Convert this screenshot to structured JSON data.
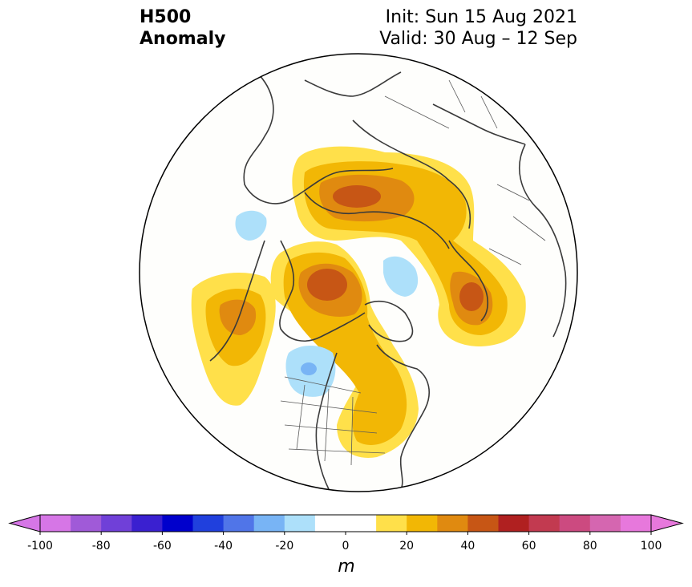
{
  "header": {
    "title_line1": "H500",
    "title_line2": "Anomaly",
    "init": "Init: Sun 15 Aug 2021",
    "valid": "Valid: 30 Aug – 12 Sep"
  },
  "map": {
    "projection": "north-polar-stereographic",
    "region": "Northern Hemisphere (North America centered)",
    "anomaly_centers": [
      {
        "name": "northern-russia-high",
        "peak": "40-50",
        "sign": "positive"
      },
      {
        "name": "alaska-high",
        "peak": "40-50",
        "sign": "positive"
      },
      {
        "name": "north-pacific-high",
        "peak": "30-40",
        "sign": "positive"
      },
      {
        "name": "scandinavia-high",
        "peak": "40-50",
        "sign": "positive"
      },
      {
        "name": "eastern-us-high",
        "peak": "10-20",
        "sign": "positive"
      },
      {
        "name": "northwest-us-low",
        "peak": "-20 to -30",
        "sign": "negative"
      },
      {
        "name": "greenland-low",
        "peak": "-10 to -20",
        "sign": "negative"
      },
      {
        "name": "east-asia-low",
        "peak": "-10 to -20",
        "sign": "negative"
      }
    ]
  },
  "colorbar": {
    "unit": "m",
    "ticks": [
      "-100",
      "-80",
      "-60",
      "-40",
      "-20",
      "0",
      "20",
      "40",
      "60",
      "80",
      "100"
    ],
    "min": -100,
    "max": 100,
    "step": 10,
    "colors": [
      "#d676e6",
      "#a05ad8",
      "#7040d8",
      "#3a20d0",
      "#0000cc",
      "#2040dd",
      "#5075e8",
      "#78b4f5",
      "#ade0fa",
      "#ffffff",
      "#ffffff",
      "#ffe04a",
      "#f2b705",
      "#e08a10",
      "#c75615",
      "#b02020",
      "#c23a50",
      "#cc4a80",
      "#d566b0",
      "#e778dc"
    ]
  }
}
